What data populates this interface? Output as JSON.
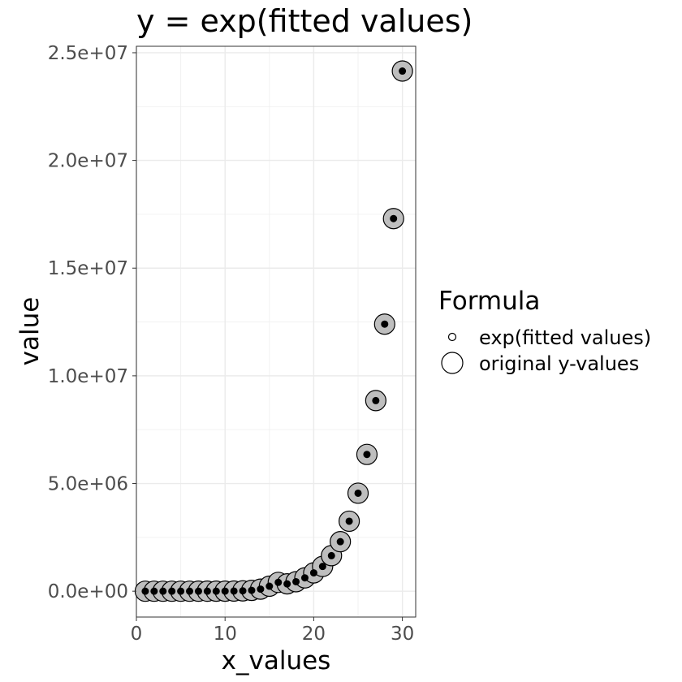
{
  "chart_data": {
    "type": "scatter",
    "title": "y = exp(fitted values)",
    "xlabel": "x_values",
    "ylabel": "value",
    "xlim": [
      0,
      31.5
    ],
    "ylim": [
      -1200000,
      25300000
    ],
    "x_ticks": [
      0,
      10,
      20,
      30
    ],
    "x_tick_labels": [
      "0",
      "10",
      "20",
      "30"
    ],
    "y_ticks": [
      0,
      5000000,
      10000000,
      15000000,
      20000000,
      25000000
    ],
    "y_tick_labels": [
      "0.0e+00",
      "5.0e+06",
      "1.0e+07",
      "1.5e+07",
      "2.0e+07",
      "2.5e+07"
    ],
    "grid": true,
    "legend": {
      "title": "Formula",
      "position": "right",
      "entries": [
        "exp(fitted values)",
        "original y-values"
      ]
    },
    "series": [
      {
        "name": "exp(fitted values)",
        "marker": "small-filled",
        "color": "#000000",
        "x": [
          1,
          2,
          3,
          4,
          5,
          6,
          7,
          8,
          9,
          10,
          11,
          12,
          13,
          14,
          15,
          16,
          17,
          18,
          19,
          20,
          21,
          22,
          23,
          24,
          25,
          26,
          27,
          28,
          29,
          30
        ],
        "y": [
          1,
          3,
          6,
          15,
          36,
          87,
          209,
          502,
          1200,
          2900,
          7000,
          16800,
          40300,
          96700,
          232000,
          410000,
          340000,
          440000,
          620000,
          850000,
          1150000,
          1650000,
          2300000,
          3250000,
          4550000,
          6350000,
          8850000,
          12400000,
          17300000,
          24150000
        ]
      },
      {
        "name": "original y-values",
        "marker": "large-hollow",
        "color": "#bebebe",
        "x": [
          1,
          2,
          3,
          4,
          5,
          6,
          7,
          8,
          9,
          10,
          11,
          12,
          13,
          14,
          15,
          16,
          17,
          18,
          19,
          20,
          21,
          22,
          23,
          24,
          25,
          26,
          27,
          28,
          29,
          30
        ],
        "y": [
          1,
          3,
          6,
          15,
          36,
          87,
          209,
          502,
          1200,
          2900,
          7000,
          16800,
          40300,
          96700,
          232000,
          410000,
          340000,
          440000,
          620000,
          850000,
          1150000,
          1650000,
          2300000,
          3250000,
          4550000,
          6350000,
          8850000,
          12400000,
          17300000,
          24150000
        ]
      }
    ]
  }
}
